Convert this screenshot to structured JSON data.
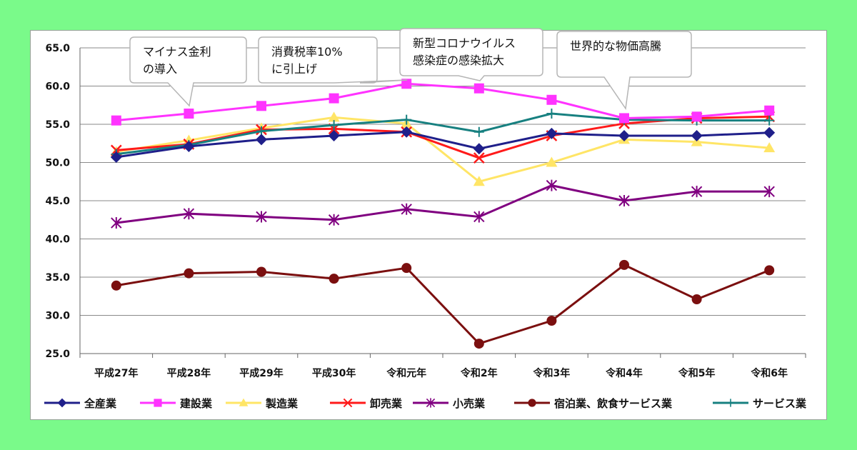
{
  "chart_data": {
    "type": "line",
    "categories": [
      "平成27年",
      "平成28年",
      "平成29年",
      "平成30年",
      "令和元年",
      "令和2年",
      "令和3年",
      "令和4年",
      "令和5年",
      "令和6年"
    ],
    "ylim": [
      25.0,
      65.0
    ],
    "yticks": [
      "65.0",
      "60.0",
      "55.0",
      "50.0",
      "45.0",
      "40.0",
      "35.0",
      "30.0",
      "25.0"
    ],
    "grid": true,
    "legend": "bottom",
    "series": [
      {
        "name": "全産業",
        "color": "#1f1f8a",
        "marker": "diamond",
        "values": [
          50.7,
          52.1,
          53.0,
          53.5,
          54.0,
          51.8,
          53.8,
          53.5,
          53.5,
          53.9
        ]
      },
      {
        "name": "建設業",
        "color": "#ff33ff",
        "marker": "square",
        "values": [
          55.5,
          56.4,
          57.4,
          58.4,
          60.3,
          59.7,
          58.2,
          55.8,
          56.0,
          56.8
        ]
      },
      {
        "name": "製造業",
        "color": "#ffe566",
        "marker": "triangle",
        "values": [
          51.4,
          52.9,
          54.5,
          55.9,
          55.1,
          47.5,
          50.0,
          53.0,
          52.7,
          51.9
        ]
      },
      {
        "name": "卸売業",
        "color": "#ff1a1a",
        "marker": "x",
        "values": [
          51.6,
          52.4,
          54.3,
          54.4,
          54.0,
          50.6,
          53.5,
          55.1,
          55.8,
          56.0
        ]
      },
      {
        "name": "小売業",
        "color": "#800080",
        "marker": "star",
        "values": [
          42.1,
          43.3,
          42.9,
          42.5,
          43.9,
          42.9,
          47.0,
          45.0,
          46.2,
          46.2
        ]
      },
      {
        "name": "宿泊業、飲食サービス業",
        "color": "#7b0f0f",
        "marker": "circle",
        "values": [
          33.9,
          35.5,
          35.7,
          34.8,
          36.2,
          26.3,
          29.3,
          36.6,
          32.1,
          35.9
        ]
      },
      {
        "name": "サービス業",
        "color": "#178080",
        "marker": "plus",
        "values": [
          51.1,
          52.3,
          54.1,
          54.9,
          55.6,
          54.0,
          56.4,
          55.6,
          55.5,
          55.5
        ]
      }
    ],
    "annotations": [
      {
        "lines": [
          "マイナス金利",
          "の導入"
        ],
        "category_index": 1
      },
      {
        "lines": [
          "消費税率10%",
          "に引上げ"
        ],
        "category_index": 4
      },
      {
        "lines": [
          "新型コロナウイルス",
          "感染症の感染拡大"
        ],
        "category_index": 5
      },
      {
        "lines": [
          "世界的な物価高騰"
        ],
        "category_index": 7
      }
    ]
  }
}
